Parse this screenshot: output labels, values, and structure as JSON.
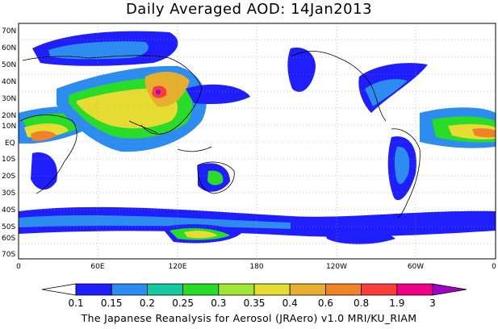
{
  "title": "Daily Averaged AOD: 14Jan2013",
  "footer": "The Japanese Reanalysis for Aerosol (JRAero) v1.0 MRI/KU_RIAM",
  "lat_labels": [
    "70N",
    "60N",
    "50N",
    "40N",
    "30N",
    "20N",
    "10N",
    "EQ",
    "10S",
    "20S",
    "30S",
    "40S",
    "50S",
    "60S",
    "70S"
  ],
  "lon_labels": [
    "0",
    "60E",
    "120E",
    "180",
    "120W",
    "60W",
    "0"
  ],
  "colorbar": {
    "labels": [
      "0.1",
      "0.15",
      "0.2",
      "0.25",
      "0.3",
      "0.35",
      "0.4",
      "0.6",
      "0.8",
      "1.9",
      "3"
    ],
    "colors": [
      "#ffffff",
      "#1e1eff",
      "#2d8cf0",
      "#14c8a0",
      "#28dc28",
      "#a0e632",
      "#e6dc32",
      "#e6af2d",
      "#f08228",
      "#fa3c3c",
      "#f00082",
      "#a000c8"
    ]
  }
}
